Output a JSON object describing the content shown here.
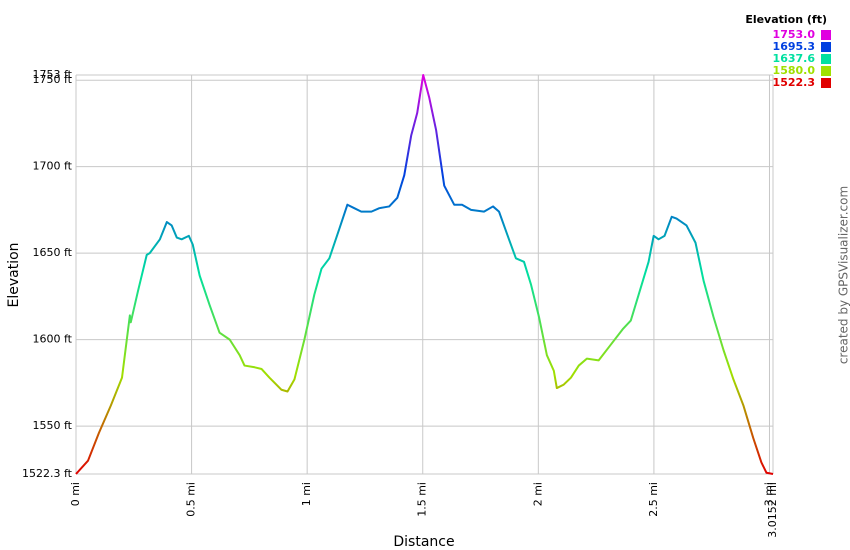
{
  "chart_data": {
    "type": "line",
    "x_label": "Distance",
    "y_label": "Elevation",
    "credit": "created by GPSVisualizer.com",
    "legend_title": "Elevation (ft)",
    "color_scale": [
      {
        "value": 1753.0,
        "label": "1753.0",
        "color": "#e000e0"
      },
      {
        "value": 1695.3,
        "label": "1695.3",
        "color": "#0040e0"
      },
      {
        "value": 1637.6,
        "label": "1637.6",
        "color": "#00e0a0"
      },
      {
        "value": 1580.0,
        "label": "1580.0",
        "color": "#a0e000"
      },
      {
        "value": 1522.3,
        "label": "1522.3",
        "color": "#e00000"
      }
    ],
    "xlim": [
      0,
      3.0152
    ],
    "ylim": [
      1522.3,
      1753
    ],
    "xticks": [
      {
        "value": 0,
        "label": "0 mi"
      },
      {
        "value": 0.5,
        "label": "0.5 mi"
      },
      {
        "value": 1,
        "label": "1 mi"
      },
      {
        "value": 1.5,
        "label": "1.5 mi"
      },
      {
        "value": 2,
        "label": "2 mi"
      },
      {
        "value": 2.5,
        "label": "2.5 mi"
      },
      {
        "value": 3,
        "label": "3 mi"
      },
      {
        "value": 3.0152,
        "label": "3.0152 mi"
      }
    ],
    "yticks": [
      {
        "value": 1522.3,
        "label": "1522.3 ft"
      },
      {
        "value": 1550,
        "label": "1550 ft"
      },
      {
        "value": 1600,
        "label": "1600 ft"
      },
      {
        "value": 1650,
        "label": "1650 ft"
      },
      {
        "value": 1700,
        "label": "1700 ft"
      },
      {
        "value": 1750,
        "label": "1750 ft"
      },
      {
        "value": 1753,
        "label": "1753 ft"
      }
    ],
    "grid": true,
    "x": [
      0,
      0.052,
      0.099,
      0.151,
      0.199,
      0.233,
      0.237,
      0.268,
      0.306,
      0.319,
      0.363,
      0.393,
      0.414,
      0.436,
      0.457,
      0.488,
      0.505,
      0.535,
      0.578,
      0.621,
      0.665,
      0.708,
      0.729,
      0.773,
      0.803,
      0.837,
      0.889,
      0.915,
      0.945,
      0.988,
      1.031,
      1.062,
      1.096,
      1.139,
      1.174,
      1.204,
      1.234,
      1.278,
      1.312,
      1.355,
      1.39,
      1.42,
      1.45,
      1.476,
      1.502,
      1.528,
      1.558,
      1.593,
      1.636,
      1.67,
      1.709,
      1.765,
      1.804,
      1.83,
      1.873,
      1.903,
      1.938,
      1.968,
      2.003,
      2.037,
      2.067,
      2.08,
      2.11,
      2.141,
      2.175,
      2.21,
      2.261,
      2.313,
      2.365,
      2.4,
      2.434,
      2.477,
      2.499,
      2.52,
      2.546,
      2.577,
      2.598,
      2.641,
      2.68,
      2.715,
      2.758,
      2.801,
      2.844,
      2.887,
      2.93,
      2.965,
      2.987,
      3.0152
    ],
    "series": [
      {
        "name": "Elevation",
        "values": [
          1522.3,
          1530,
          1546,
          1562,
          1578,
          1614,
          1610,
          1628,
          1649,
          1650,
          1658,
          1668,
          1666,
          1659,
          1658,
          1660,
          1655,
          1637,
          1620,
          1604,
          1600,
          1591,
          1585,
          1584,
          1583,
          1578,
          1571,
          1570,
          1577,
          1600,
          1626,
          1641,
          1647,
          1664,
          1678,
          1676,
          1674,
          1674,
          1676,
          1677,
          1682,
          1695,
          1718,
          1731,
          1753,
          1740,
          1721,
          1689,
          1678,
          1678,
          1675,
          1674,
          1677,
          1674,
          1658,
          1647,
          1645,
          1632,
          1613,
          1591,
          1582,
          1572,
          1574,
          1578,
          1585,
          1589,
          1588,
          1597,
          1606,
          1611,
          1626,
          1645,
          1660,
          1658,
          1660,
          1671,
          1670,
          1666,
          1656,
          1634,
          1613,
          1594,
          1577,
          1562,
          1543,
          1529,
          1523,
          1522.3
        ]
      }
    ]
  }
}
